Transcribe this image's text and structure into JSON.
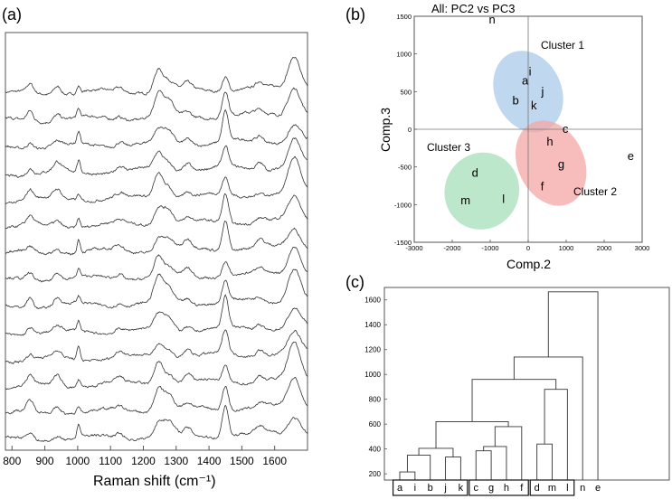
{
  "panel_labels": {
    "a": "(a)",
    "b": "(b)",
    "c": "(c)"
  },
  "chart_data": [
    {
      "id": "a",
      "type": "line",
      "title": "",
      "xlabel": "Raman shift (cm⁻¹)",
      "ylabel": "",
      "xlim": [
        780,
        1700
      ],
      "xticks": [
        800,
        900,
        1000,
        1100,
        1200,
        1300,
        1400,
        1500,
        1600
      ],
      "n_spectra": 14,
      "peaks": [
        {
          "x": 855,
          "h": 0.45,
          "w": 14
        },
        {
          "x": 938,
          "h": 0.4,
          "w": 16
        },
        {
          "x": 1003,
          "h": 0.55,
          "w": 7
        },
        {
          "x": 1128,
          "h": 0.25,
          "w": 16
        },
        {
          "x": 1245,
          "h": 1.0,
          "w": 18
        },
        {
          "x": 1275,
          "h": 0.7,
          "w": 22
        },
        {
          "x": 1335,
          "h": 0.35,
          "w": 16
        },
        {
          "x": 1450,
          "h": 1.35,
          "w": 13
        },
        {
          "x": 1555,
          "h": 0.3,
          "w": 16
        },
        {
          "x": 1660,
          "h": 1.5,
          "w": 26
        }
      ]
    },
    {
      "id": "b",
      "type": "scatter",
      "title": "All: PC2 vs PC3",
      "xlabel": "Comp.2",
      "ylabel": "Comp.3",
      "xlim": [
        -3000,
        3000
      ],
      "ylim": [
        -1500,
        1500
      ],
      "xticks": [
        -3000,
        -2000,
        -1000,
        0,
        1000,
        2000,
        3000
      ],
      "yticks": [
        -1500,
        -1000,
        -500,
        0,
        500,
        1000,
        1500
      ],
      "points": [
        {
          "label": "n",
          "x": -950,
          "y": 1450
        },
        {
          "label": "i",
          "x": 50,
          "y": 760
        },
        {
          "label": "a",
          "x": -80,
          "y": 640
        },
        {
          "label": "j",
          "x": 380,
          "y": 500
        },
        {
          "label": "b",
          "x": -330,
          "y": 380
        },
        {
          "label": "k",
          "x": 150,
          "y": 310
        },
        {
          "label": "c",
          "x": 980,
          "y": 0
        },
        {
          "label": "h",
          "x": 570,
          "y": -170
        },
        {
          "label": "e",
          "x": 2700,
          "y": -360
        },
        {
          "label": "g",
          "x": 870,
          "y": -470
        },
        {
          "label": "d",
          "x": -1400,
          "y": -580
        },
        {
          "label": "f",
          "x": 370,
          "y": -760
        },
        {
          "label": "l",
          "x": -650,
          "y": -930
        },
        {
          "label": "m",
          "x": -1650,
          "y": -950
        }
      ],
      "clusters": [
        {
          "name": "Cluster 1",
          "cx": 0,
          "cy": 500,
          "rx": 950,
          "ry": 610,
          "color": "#a9cbea"
        },
        {
          "name": "Cluster 2",
          "cx": 600,
          "cy": -450,
          "rx": 950,
          "ry": 640,
          "color": "#f4a6a6"
        },
        {
          "name": "Cluster 3",
          "cx": -1220,
          "cy": -820,
          "rx": 1060,
          "ry": 560,
          "color": "#a6dfb9"
        }
      ]
    },
    {
      "id": "c",
      "type": "dendrogram",
      "ylim": [
        150,
        1700
      ],
      "yticks": [
        200,
        400,
        600,
        800,
        1000,
        1200,
        1400,
        1600
      ],
      "leaves": [
        "a",
        "i",
        "b",
        "j",
        "k",
        "c",
        "g",
        "h",
        "f",
        "d",
        "m",
        "l",
        "n",
        "e"
      ],
      "merges": [
        {
          "left": "a",
          "right": "i",
          "height": 215
        },
        {
          "left": "ai",
          "right": "b",
          "height": 350
        },
        {
          "left": "j",
          "right": "k",
          "height": 335
        },
        {
          "left": "aib",
          "right": "jk",
          "height": 405
        },
        {
          "left": "c",
          "right": "g",
          "height": 385
        },
        {
          "left": "cg",
          "right": "h",
          "height": 420
        },
        {
          "left": "cgh",
          "right": "f",
          "height": 580
        },
        {
          "left": "A",
          "right": "B",
          "height": 620
        },
        {
          "left": "d",
          "right": "m",
          "height": 440
        },
        {
          "left": "dm",
          "right": "l",
          "height": 880
        },
        {
          "left": "AB",
          "right": "C",
          "height": 960
        },
        {
          "left": "ABC",
          "right": "n",
          "height": 1140
        },
        {
          "left": "ABCn",
          "right": "e",
          "height": 1665
        }
      ],
      "groups": [
        [
          "a",
          "i",
          "b",
          "j",
          "k"
        ],
        [
          "c",
          "g",
          "h",
          "f"
        ],
        [
          "d",
          "m",
          "l"
        ]
      ]
    }
  ]
}
